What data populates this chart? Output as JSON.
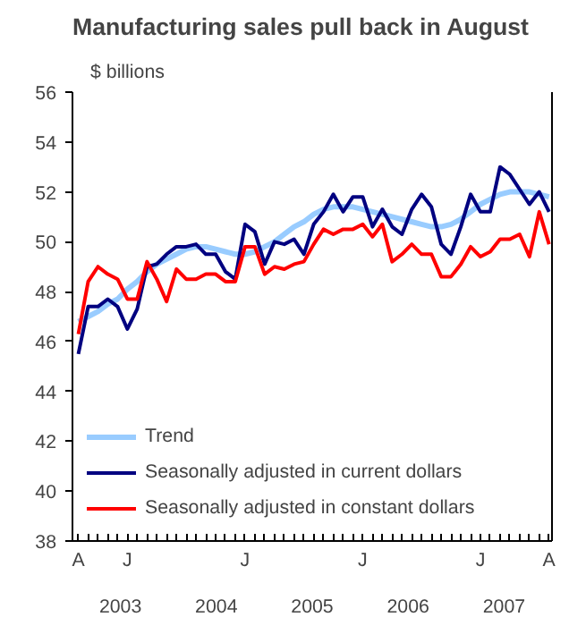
{
  "chart_data": {
    "type": "line",
    "title": "Manufacturing sales pull back in August",
    "ylabel": "$ billions",
    "categories": [
      "A",
      null,
      null,
      null,
      null,
      "J",
      null,
      null,
      null,
      null,
      null,
      null,
      null,
      null,
      null,
      null,
      null,
      "J",
      null,
      null,
      null,
      null,
      null,
      null,
      null,
      null,
      null,
      null,
      null,
      "J",
      null,
      null,
      null,
      null,
      null,
      null,
      null,
      null,
      null,
      null,
      null,
      "J",
      null,
      null,
      null,
      null,
      null,
      null,
      "A"
    ],
    "series": [
      {
        "name": "Trend",
        "color": "#99ccff",
        "values": [
          46.8,
          47.0,
          47.2,
          47.5,
          47.7,
          48.1,
          48.4,
          48.8,
          49.1,
          49.3,
          49.5,
          49.7,
          49.8,
          49.8,
          49.7,
          49.6,
          49.5,
          49.5,
          49.6,
          49.8,
          50.0,
          50.3,
          50.6,
          50.8,
          51.1,
          51.3,
          51.4,
          51.4,
          51.4,
          51.3,
          51.2,
          51.1,
          51.0,
          50.9,
          50.8,
          50.7,
          50.6,
          50.6,
          50.7,
          50.9,
          51.2,
          51.5,
          51.7,
          51.9,
          52.0,
          52.0,
          52.0,
          51.9,
          51.8
        ]
      },
      {
        "name": "Seasonally adjusted in current dollars",
        "color": "#000080",
        "values": [
          45.5,
          47.4,
          47.4,
          47.7,
          47.4,
          46.5,
          47.3,
          49.0,
          49.1,
          49.5,
          49.8,
          49.8,
          49.9,
          49.5,
          49.5,
          48.8,
          48.5,
          50.7,
          50.4,
          49.1,
          50.0,
          49.9,
          50.1,
          49.5,
          50.7,
          51.2,
          51.9,
          51.2,
          51.8,
          51.8,
          50.6,
          51.3,
          50.6,
          50.3,
          51.3,
          51.9,
          51.4,
          49.9,
          49.5,
          50.6,
          51.9,
          51.2,
          51.2,
          53.0,
          52.7,
          52.1,
          51.5,
          52.0,
          51.2
        ]
      },
      {
        "name": "Seasonally adjusted in constant dollars",
        "color": "#ff0000",
        "values": [
          46.3,
          48.4,
          49.0,
          48.7,
          48.5,
          47.7,
          47.7,
          49.2,
          48.5,
          47.6,
          48.9,
          48.5,
          48.5,
          48.7,
          48.7,
          48.4,
          48.4,
          49.8,
          49.8,
          48.7,
          49.0,
          48.9,
          49.1,
          49.2,
          49.9,
          50.5,
          50.3,
          50.5,
          50.5,
          50.7,
          50.2,
          50.7,
          49.2,
          49.5,
          49.9,
          49.5,
          49.5,
          48.6,
          48.6,
          49.1,
          49.8,
          49.4,
          49.6,
          50.1,
          50.1,
          50.3,
          49.4,
          51.2,
          49.9
        ]
      }
    ],
    "ylim": [
      38,
      56
    ],
    "yticks": [
      38,
      40,
      42,
      44,
      46,
      48,
      50,
      52,
      54,
      56
    ],
    "annotations": [
      "2003",
      "2004",
      "2005",
      "2006",
      "2007"
    ],
    "grid": false,
    "legend": "bottom left",
    "line_style": "solid"
  }
}
